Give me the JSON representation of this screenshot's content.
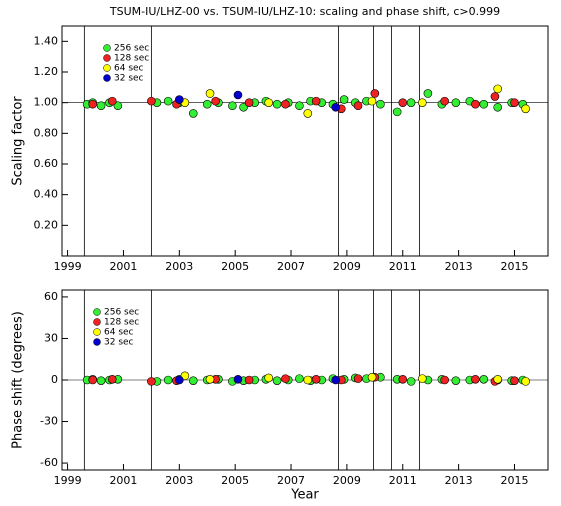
{
  "chart_data": [
    {
      "type": "scatter",
      "title": "TSUM-IU/LHZ-00 vs. TSUM-IU/LHZ-10: scaling and phase shift, c>0.999",
      "ylabel": "Scaling factor",
      "legend": "upper left",
      "xlim": [
        1998.8,
        2016.2
      ],
      "xticks": [
        1999,
        2001,
        2003,
        2005,
        2007,
        2009,
        2011,
        2013,
        2015
      ],
      "ylim": [
        0,
        1.5
      ],
      "yticks": [
        {
          "value": 0.2,
          "label": "0.20"
        },
        {
          "value": 0.4,
          "label": "0.40"
        },
        {
          "value": 0.6,
          "label": "0.60"
        },
        {
          "value": 0.8,
          "label": "0.80"
        },
        {
          "value": 1.0,
          "label": "1.00"
        },
        {
          "value": 1.2,
          "label": "1.20"
        },
        {
          "value": 1.4,
          "label": "1.40"
        }
      ],
      "vlines": [
        1999.6,
        2002.0,
        2008.7,
        2009.95,
        2010.6,
        2011.6
      ],
      "series": [
        {
          "name": "256 sec",
          "color": "#33ee33",
          "x": [
            1999.7,
            1999.9,
            2000.2,
            2000.5,
            2000.8,
            2002.2,
            2002.6,
            2003.0,
            2003.5,
            2004.0,
            2004.4,
            2004.9,
            2005.3,
            2005.7,
            2006.1,
            2006.5,
            2006.9,
            2007.3,
            2007.7,
            2008.1,
            2008.5,
            2008.9,
            2009.3,
            2009.7,
            2010.2,
            2010.8,
            2011.3,
            2011.9,
            2012.4,
            2012.9,
            2013.4,
            2013.9,
            2014.4,
            2014.9,
            2015.3
          ],
          "values": [
            0.99,
            1.0,
            0.98,
            1.0,
            0.98,
            1.0,
            1.01,
            1.0,
            0.93,
            0.99,
            1.0,
            0.98,
            0.97,
            1.0,
            1.01,
            0.99,
            1.0,
            0.98,
            1.01,
            1.0,
            0.99,
            1.02,
            1.0,
            1.01,
            0.99,
            0.94,
            1.0,
            1.06,
            0.99,
            1.0,
            1.01,
            0.99,
            0.97,
            1.0,
            0.99
          ]
        },
        {
          "name": "128 sec",
          "color": "#ee2222",
          "x": [
            1999.9,
            2000.6,
            2002.0,
            2002.9,
            2004.3,
            2005.5,
            2006.8,
            2007.9,
            2008.8,
            2009.4,
            2010.0,
            2011.0,
            2012.5,
            2013.6,
            2014.3,
            2015.0
          ],
          "values": [
            0.99,
            1.01,
            1.01,
            0.99,
            1.01,
            1.0,
            0.99,
            1.01,
            0.96,
            0.98,
            1.06,
            1.0,
            1.01,
            0.99,
            1.04,
            1.0
          ]
        },
        {
          "name": " 64 sec",
          "color": "#ffff00",
          "x": [
            2003.2,
            2004.1,
            2006.2,
            2007.6,
            2009.9,
            2011.7,
            2014.4,
            2015.4
          ],
          "values": [
            1.0,
            1.06,
            1.0,
            0.93,
            1.01,
            1.0,
            1.09,
            0.96
          ]
        },
        {
          "name": " 32 sec",
          "color": "#0000cc",
          "x": [
            2003.0,
            2005.1,
            2008.6
          ],
          "values": [
            1.02,
            1.05,
            0.97
          ]
        }
      ]
    },
    {
      "type": "scatter",
      "ylabel": "Phase shift (degrees)",
      "xlabel": "Year",
      "legend": "upper left",
      "xlim": [
        1998.8,
        2016.2
      ],
      "xticks": [
        1999,
        2001,
        2003,
        2005,
        2007,
        2009,
        2011,
        2013,
        2015
      ],
      "ylim": [
        -65,
        65
      ],
      "yticks": [
        -60,
        -30,
        0,
        30,
        60
      ],
      "vlines": [
        1999.6,
        2002.0,
        2008.7,
        2009.95,
        2010.6,
        2011.6
      ],
      "series": [
        {
          "name": "256 sec",
          "color": "#33ee33",
          "x": [
            1999.7,
            1999.9,
            2000.2,
            2000.5,
            2000.8,
            2002.2,
            2002.6,
            2003.0,
            2003.5,
            2004.0,
            2004.4,
            2004.9,
            2005.3,
            2005.7,
            2006.1,
            2006.5,
            2006.9,
            2007.3,
            2007.7,
            2008.1,
            2008.5,
            2008.9,
            2009.3,
            2009.7,
            2010.2,
            2010.8,
            2011.3,
            2011.9,
            2012.4,
            2012.9,
            2013.4,
            2013.9,
            2014.4,
            2014.9,
            2015.3
          ],
          "values": [
            0,
            0.5,
            -0.5,
            0,
            0.5,
            -1,
            0,
            0.5,
            -0.5,
            0,
            0.5,
            -1,
            -0.5,
            0,
            0.5,
            -0.5,
            0,
            1,
            -0.5,
            0,
            1,
            0.5,
            1.5,
            1,
            2,
            0.5,
            -1,
            0,
            0.5,
            -0.5,
            0,
            0.5,
            0,
            -0.5,
            0
          ]
        },
        {
          "name": "128 sec",
          "color": "#ee2222",
          "x": [
            1999.9,
            2000.6,
            2002.0,
            2002.9,
            2004.3,
            2005.5,
            2006.8,
            2007.9,
            2008.8,
            2009.4,
            2010.0,
            2011.0,
            2012.5,
            2013.6,
            2014.3,
            2015.0
          ],
          "values": [
            0,
            0.5,
            -1,
            -0.5,
            0.5,
            0,
            1,
            0.5,
            0,
            1,
            2,
            0.5,
            0,
            0.5,
            -1,
            -0.5
          ]
        },
        {
          "name": " 64 sec",
          "color": "#ffff00",
          "x": [
            2003.2,
            2004.1,
            2006.2,
            2007.6,
            2009.9,
            2011.7,
            2014.4,
            2015.4
          ],
          "values": [
            3,
            0.5,
            1.5,
            0,
            2,
            1,
            0.5,
            -1
          ]
        },
        {
          "name": " 32 sec",
          "color": "#0000cc",
          "x": [
            2003.0,
            2005.1,
            2008.6
          ],
          "values": [
            0,
            0.5,
            0
          ]
        }
      ]
    }
  ]
}
